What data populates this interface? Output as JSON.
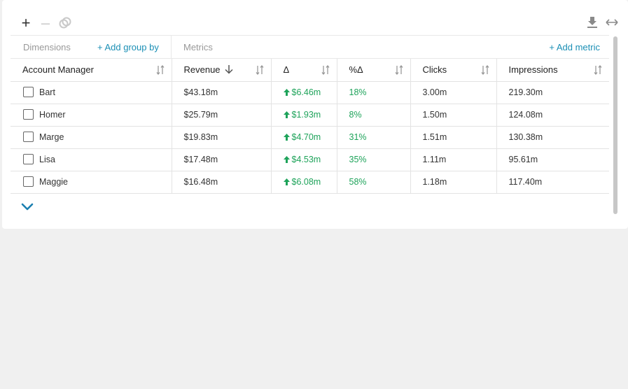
{
  "toolbar": {
    "left_icons": [
      "plus-icon",
      "minus-icon",
      "link-icon"
    ],
    "right_icons": [
      "download-icon",
      "expand-horizontal-icon"
    ],
    "plus_glyph": "+",
    "minus_glyph": "–"
  },
  "sections": {
    "dimensions_label": "Dimensions",
    "add_group_label": "+ Add group by",
    "metrics_label": "Metrics",
    "add_metric_label": "+ Add metric"
  },
  "columns": [
    {
      "label": "Account Manager"
    },
    {
      "label": "Revenue"
    },
    {
      "label": "Δ"
    },
    {
      "label": "%Δ"
    },
    {
      "label": "Clicks"
    },
    {
      "label": "Impressions"
    }
  ],
  "rows": [
    {
      "name": "Bart",
      "revenue": "$43.18m",
      "delta": "$6.46m",
      "pct": "18%",
      "clicks": "3.00m",
      "impressions": "219.30m"
    },
    {
      "name": "Homer",
      "revenue": "$25.79m",
      "delta": "$1.93m",
      "pct": "8%",
      "clicks": "1.50m",
      "impressions": "124.08m"
    },
    {
      "name": "Marge",
      "revenue": "$19.83m",
      "delta": "$4.70m",
      "pct": "31%",
      "clicks": "1.51m",
      "impressions": "130.38m"
    },
    {
      "name": "Lisa",
      "revenue": "$17.48m",
      "delta": "$4.53m",
      "pct": "35%",
      "clicks": "1.11m",
      "impressions": "95.61m"
    },
    {
      "name": "Maggie",
      "revenue": "$16.48m",
      "delta": "$6.08m",
      "pct": "58%",
      "clicks": "1.18m",
      "impressions": "117.40m"
    }
  ],
  "colors": {
    "accent": "#1b8fb5",
    "positive": "#1ea35a",
    "muted": "#999999"
  }
}
